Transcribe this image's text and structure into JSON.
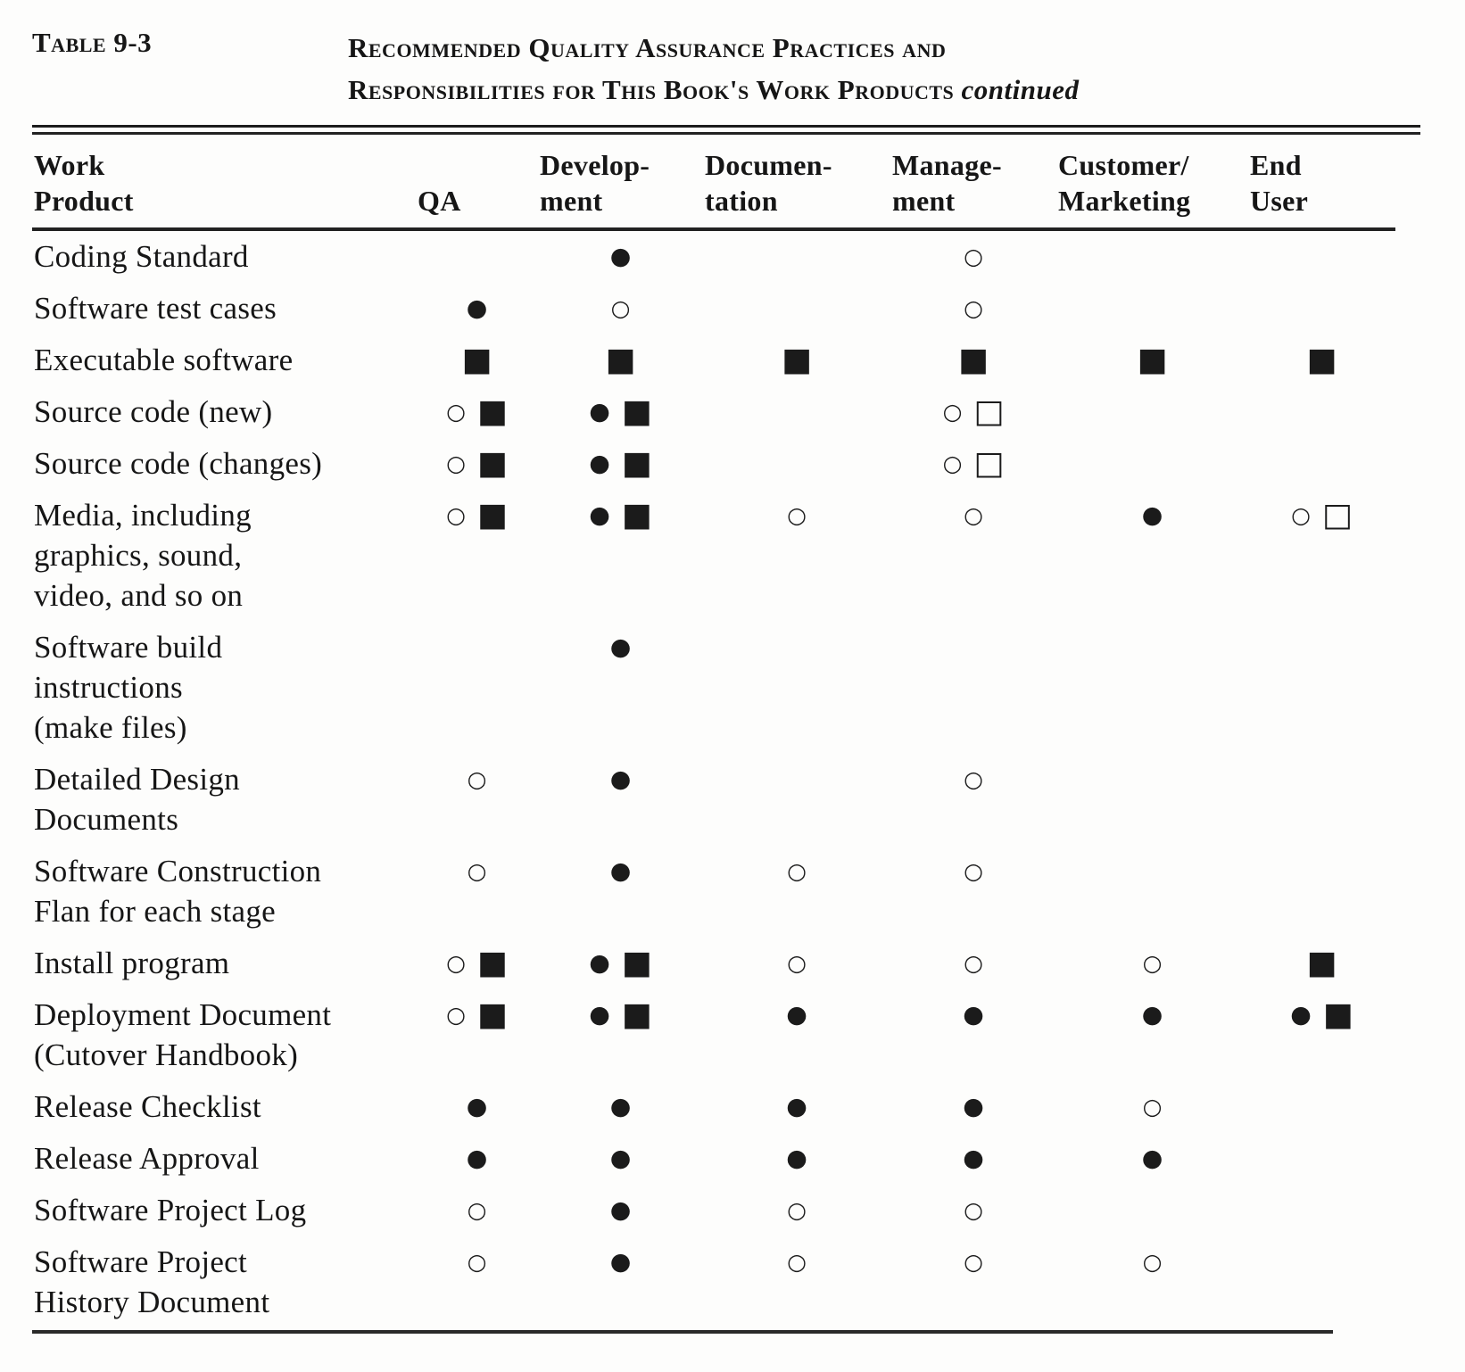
{
  "header": {
    "table_label": "Table 9-3",
    "title_line1": "Recommended Quality Assurance Practices and",
    "title_line2": "Responsibilities for This Book's Work Products",
    "continued": "continued"
  },
  "symbols": {
    "filled-circle": "●",
    "open-circle": "○",
    "filled-square": "■",
    "open-square": "□"
  },
  "columns": [
    {
      "key": "product",
      "lines": [
        "Work",
        "Product"
      ]
    },
    {
      "key": "qa",
      "lines": [
        "QA"
      ]
    },
    {
      "key": "development",
      "lines": [
        "Develop-",
        "ment"
      ]
    },
    {
      "key": "documentation",
      "lines": [
        "Documen-",
        "tation"
      ]
    },
    {
      "key": "management",
      "lines": [
        "Manage-",
        "ment"
      ]
    },
    {
      "key": "customer_marketing",
      "lines": [
        "Customer/",
        "Marketing"
      ]
    },
    {
      "key": "end_user",
      "lines": [
        "End",
        "User"
      ]
    }
  ],
  "rows": [
    {
      "product_lines": [
        "Coding Standard"
      ],
      "cells": {
        "qa": [],
        "development": [
          "filled-circle"
        ],
        "documentation": [],
        "management": [
          "open-circle"
        ],
        "customer_marketing": [],
        "end_user": []
      }
    },
    {
      "product_lines": [
        "Software test cases"
      ],
      "cells": {
        "qa": [
          "filled-circle"
        ],
        "development": [
          "open-circle"
        ],
        "documentation": [],
        "management": [
          "open-circle"
        ],
        "customer_marketing": [],
        "end_user": []
      }
    },
    {
      "product_lines": [
        "Executable software"
      ],
      "cells": {
        "qa": [
          "filled-square"
        ],
        "development": [
          "filled-square"
        ],
        "documentation": [
          "filled-square"
        ],
        "management": [
          "filled-square"
        ],
        "customer_marketing": [
          "filled-square"
        ],
        "end_user": [
          "filled-square"
        ]
      }
    },
    {
      "product_lines": [
        "Source code (new)"
      ],
      "cells": {
        "qa": [
          "open-circle",
          "filled-square"
        ],
        "development": [
          "filled-circle",
          "filled-square"
        ],
        "documentation": [],
        "management": [
          "open-circle",
          "open-square"
        ],
        "customer_marketing": [],
        "end_user": []
      }
    },
    {
      "product_lines": [
        "Source code (changes)"
      ],
      "cells": {
        "qa": [
          "open-circle",
          "filled-square"
        ],
        "development": [
          "filled-circle",
          "filled-square"
        ],
        "documentation": [],
        "management": [
          "open-circle",
          "open-square"
        ],
        "customer_marketing": [],
        "end_user": []
      }
    },
    {
      "product_lines": [
        "Media, including",
        "graphics, sound,",
        "video, and so on"
      ],
      "cells": {
        "qa": [
          "open-circle",
          "filled-square"
        ],
        "development": [
          "filled-circle",
          "filled-square"
        ],
        "documentation": [
          "open-circle"
        ],
        "management": [
          "open-circle"
        ],
        "customer_marketing": [
          "filled-circle"
        ],
        "end_user": [
          "open-circle",
          "open-square"
        ]
      }
    },
    {
      "product_lines": [
        "Software build",
        "instructions",
        "(make files)"
      ],
      "cells": {
        "qa": [],
        "development": [
          "filled-circle"
        ],
        "documentation": [],
        "management": [],
        "customer_marketing": [],
        "end_user": []
      }
    },
    {
      "product_lines": [
        "Detailed Design",
        "Documents"
      ],
      "cells": {
        "qa": [
          "open-circle"
        ],
        "development": [
          "filled-circle"
        ],
        "documentation": [],
        "management": [
          "open-circle"
        ],
        "customer_marketing": [],
        "end_user": []
      }
    },
    {
      "product_lines": [
        "Software Construction",
        "Flan for each stage"
      ],
      "cells": {
        "qa": [
          "open-circle"
        ],
        "development": [
          "filled-circle"
        ],
        "documentation": [
          "open-circle"
        ],
        "management": [
          "open-circle"
        ],
        "customer_marketing": [],
        "end_user": []
      }
    },
    {
      "product_lines": [
        "Install program"
      ],
      "cells": {
        "qa": [
          "open-circle",
          "filled-square"
        ],
        "development": [
          "filled-circle",
          "filled-square"
        ],
        "documentation": [
          "open-circle"
        ],
        "management": [
          "open-circle"
        ],
        "customer_marketing": [
          "open-circle"
        ],
        "end_user": [
          "filled-square"
        ]
      }
    },
    {
      "product_lines": [
        "Deployment Document",
        "(Cutover Handbook)"
      ],
      "cells": {
        "qa": [
          "open-circle",
          "filled-square"
        ],
        "development": [
          "filled-circle",
          "filled-square"
        ],
        "documentation": [
          "filled-circle"
        ],
        "management": [
          "filled-circle"
        ],
        "customer_marketing": [
          "filled-circle"
        ],
        "end_user": [
          "filled-circle",
          "filled-square"
        ]
      }
    },
    {
      "product_lines": [
        "Release Checklist"
      ],
      "cells": {
        "qa": [
          "filled-circle"
        ],
        "development": [
          "filled-circle"
        ],
        "documentation": [
          "filled-circle"
        ],
        "management": [
          "filled-circle"
        ],
        "customer_marketing": [
          "open-circle"
        ],
        "end_user": []
      }
    },
    {
      "product_lines": [
        "Release Approval"
      ],
      "cells": {
        "qa": [
          "filled-circle"
        ],
        "development": [
          "filled-circle"
        ],
        "documentation": [
          "filled-circle"
        ],
        "management": [
          "filled-circle"
        ],
        "customer_marketing": [
          "filled-circle"
        ],
        "end_user": []
      }
    },
    {
      "product_lines": [
        "Software Project Log"
      ],
      "cells": {
        "qa": [
          "open-circle"
        ],
        "development": [
          "filled-circle"
        ],
        "documentation": [
          "open-circle"
        ],
        "management": [
          "open-circle"
        ],
        "customer_marketing": [],
        "end_user": []
      }
    },
    {
      "product_lines": [
        "Software Project",
        "History Document"
      ],
      "cells": {
        "qa": [
          "open-circle"
        ],
        "development": [
          "filled-circle"
        ],
        "documentation": [
          "open-circle"
        ],
        "management": [
          "open-circle"
        ],
        "customer_marketing": [
          "open-circle"
        ],
        "end_user": []
      }
    }
  ]
}
